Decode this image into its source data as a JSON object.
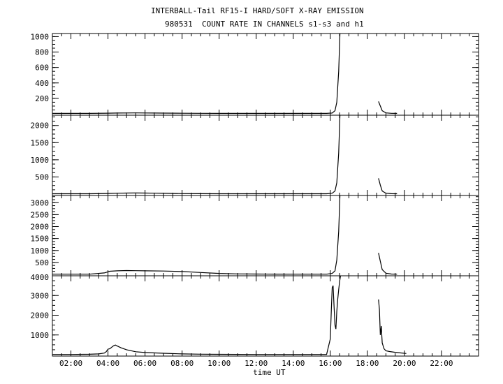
{
  "title": "INTERBALL-Tail RF15-I HARD/SOFT X-RAY EMISSION",
  "subtitle": "980531  COUNT RATE IN CHANNELS s1-s3 and h1",
  "chart_data": [
    {
      "type": "line",
      "panel": "s1",
      "ylim": [
        0,
        1040
      ],
      "yticks": [
        200,
        400,
        600,
        800,
        1000
      ],
      "ytick_labels": [
        "200",
        "400",
        "600",
        "800",
        "1000"
      ],
      "series": [
        {
          "points": [
            [
              1.0,
              5
            ],
            [
              2.0,
              5
            ],
            [
              3.0,
              5
            ],
            [
              4.0,
              8
            ],
            [
              4.5,
              10
            ],
            [
              5.0,
              11
            ],
            [
              5.5,
              12
            ],
            [
              6.0,
              11
            ],
            [
              6.5,
              10
            ],
            [
              7.0,
              9
            ],
            [
              8.0,
              7
            ],
            [
              9.0,
              6
            ],
            [
              10.0,
              5
            ],
            [
              11.0,
              5
            ],
            [
              12.0,
              5
            ],
            [
              13.0,
              5
            ],
            [
              14.0,
              5
            ],
            [
              15.0,
              5
            ],
            [
              15.8,
              5
            ],
            [
              16.1,
              10
            ],
            [
              16.25,
              40
            ],
            [
              16.35,
              150
            ],
            [
              16.45,
              550
            ],
            [
              16.52,
              1040
            ]
          ],
          "points2": [
            [
              18.6,
              160
            ],
            [
              18.7,
              100
            ],
            [
              18.8,
              40
            ],
            [
              19.0,
              12
            ],
            [
              19.3,
              6
            ],
            [
              19.6,
              5
            ]
          ]
        }
      ]
    },
    {
      "type": "line",
      "panel": "s2",
      "ylim": [
        0,
        2300
      ],
      "yticks": [
        500,
        1000,
        1500,
        2000
      ],
      "ytick_labels": [
        "500",
        "1000",
        "1500",
        "2000"
      ],
      "series": [
        {
          "points": [
            [
              1.0,
              10
            ],
            [
              2.0,
              10
            ],
            [
              3.0,
              10
            ],
            [
              4.0,
              18
            ],
            [
              4.5,
              25
            ],
            [
              5.0,
              30
            ],
            [
              5.5,
              32
            ],
            [
              6.0,
              30
            ],
            [
              6.5,
              26
            ],
            [
              7.0,
              22
            ],
            [
              8.0,
              15
            ],
            [
              9.0,
              12
            ],
            [
              10.0,
              10
            ],
            [
              11.0,
              10
            ],
            [
              12.0,
              10
            ],
            [
              13.0,
              10
            ],
            [
              14.0,
              10
            ],
            [
              15.0,
              10
            ],
            [
              15.8,
              10
            ],
            [
              16.1,
              25
            ],
            [
              16.25,
              90
            ],
            [
              16.35,
              330
            ],
            [
              16.45,
              1200
            ],
            [
              16.52,
              2300
            ]
          ],
          "points2": [
            [
              18.6,
              460
            ],
            [
              18.7,
              260
            ],
            [
              18.8,
              90
            ],
            [
              19.0,
              25
            ],
            [
              19.3,
              12
            ],
            [
              19.6,
              10
            ]
          ]
        }
      ]
    },
    {
      "type": "line",
      "panel": "s3",
      "ylim": [
        0,
        3300
      ],
      "yticks": [
        500,
        1000,
        1500,
        2000,
        2500,
        3000
      ],
      "ytick_labels": [
        "500",
        "1000",
        "1500",
        "2000",
        "2500",
        "3000"
      ],
      "series": [
        {
          "points": [
            [
              1.0,
              10
            ],
            [
              2.0,
              10
            ],
            [
              3.0,
              10
            ],
            [
              3.8,
              60
            ],
            [
              4.1,
              130
            ],
            [
              4.5,
              150
            ],
            [
              5.0,
              160
            ],
            [
              5.5,
              155
            ],
            [
              6.0,
              150
            ],
            [
              7.0,
              140
            ],
            [
              8.0,
              120
            ],
            [
              9.0,
              80
            ],
            [
              10.0,
              40
            ],
            [
              11.0,
              20
            ],
            [
              12.0,
              15
            ],
            [
              13.0,
              12
            ],
            [
              14.0,
              10
            ],
            [
              15.0,
              10
            ],
            [
              15.8,
              10
            ],
            [
              16.1,
              40
            ],
            [
              16.25,
              150
            ],
            [
              16.35,
              600
            ],
            [
              16.45,
              1800
            ],
            [
              16.52,
              3300
            ]
          ],
          "points2": [
            [
              18.6,
              900
            ],
            [
              18.7,
              550
            ],
            [
              18.8,
              200
            ],
            [
              19.0,
              50
            ],
            [
              19.3,
              15
            ],
            [
              19.6,
              10
            ]
          ]
        }
      ]
    },
    {
      "type": "line",
      "panel": "h1",
      "ylim": [
        0,
        4000
      ],
      "yticks": [
        1000,
        2000,
        3000
      ],
      "ytick_labels": [
        "1000",
        "2000",
        "3000"
      ],
      "xlim": [
        1.0,
        24.0
      ],
      "xticks": [
        2,
        4,
        6,
        8,
        10,
        12,
        14,
        16,
        18,
        20,
        22
      ],
      "xtick_labels": [
        "02:00",
        "04:00",
        "06:00",
        "08:00",
        "10:00",
        "12:00",
        "14:00",
        "16:00",
        "18:00",
        "20:00",
        "22:00"
      ],
      "xlabel": "time UT",
      "top_tick_label": "4000",
      "series": [
        {
          "points": [
            [
              1.0,
              10
            ],
            [
              2.0,
              10
            ],
            [
              3.0,
              20
            ],
            [
              3.5,
              40
            ],
            [
              3.8,
              80
            ],
            [
              3.9,
              150
            ],
            [
              4.0,
              280
            ],
            [
              4.1,
              300
            ],
            [
              4.2,
              380
            ],
            [
              4.3,
              450
            ],
            [
              4.4,
              490
            ],
            [
              4.5,
              440
            ],
            [
              4.7,
              350
            ],
            [
              5.0,
              250
            ],
            [
              5.5,
              150
            ],
            [
              6.0,
              110
            ],
            [
              7.0,
              70
            ],
            [
              8.0,
              40
            ],
            [
              9.0,
              25
            ],
            [
              10.0,
              18
            ],
            [
              11.0,
              14
            ],
            [
              12.0,
              12
            ],
            [
              13.0,
              10
            ],
            [
              14.0,
              10
            ],
            [
              15.0,
              10
            ],
            [
              15.8,
              10
            ],
            [
              16.0,
              800
            ],
            [
              16.05,
              2200
            ],
            [
              16.1,
              3400
            ],
            [
              16.15,
              3500
            ],
            [
              16.2,
              2500
            ],
            [
              16.25,
              1500
            ],
            [
              16.3,
              1300
            ],
            [
              16.35,
              2200
            ],
            [
              16.4,
              2800
            ],
            [
              16.45,
              3300
            ],
            [
              16.5,
              3700
            ],
            [
              16.55,
              4000
            ]
          ],
          "points2": [
            [
              18.6,
              2800
            ],
            [
              18.65,
              2300
            ],
            [
              18.7,
              1000
            ],
            [
              18.75,
              1450
            ],
            [
              18.8,
              600
            ],
            [
              18.9,
              300
            ],
            [
              19.0,
              200
            ],
            [
              19.2,
              160
            ],
            [
              19.5,
              120
            ],
            [
              19.8,
              90
            ],
            [
              20.1,
              60
            ]
          ]
        }
      ]
    }
  ]
}
